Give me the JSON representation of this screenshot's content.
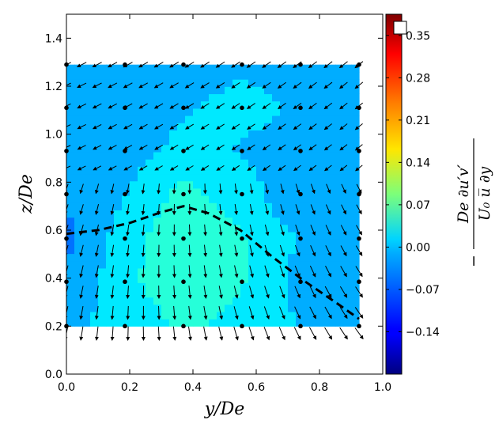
{
  "chart_data": {
    "type": "contour",
    "xlabel": "y/De",
    "ylabel": "z/De",
    "xlim": [
      0.0,
      1.0
    ],
    "ylim": [
      0.0,
      1.5
    ],
    "xticks": [
      "0.0",
      "0.2",
      "0.4",
      "0.6",
      "0.8",
      "1.0"
    ],
    "yticks": [
      "0.0",
      "0.2",
      "0.4",
      "0.6",
      "0.8",
      "1.0",
      "1.2",
      "1.4"
    ],
    "colorbar": {
      "label_lines": [
        "De ∂u′v′",
        "U₀ u̅  ∂y"
      ],
      "label_sign": "−",
      "range": [
        -0.21,
        0.385
      ],
      "ticks": [
        "−0.14",
        "−0.07",
        "0.00",
        "0.07",
        "0.14",
        "0.21",
        "0.28",
        "0.35"
      ],
      "colormap": "jet"
    },
    "field": {
      "y": [
        0.0,
        0.185,
        0.37,
        0.555,
        0.74,
        0.925
      ],
      "z": [
        0.2,
        0.385,
        0.565,
        0.75,
        0.93,
        1.11,
        1.29
      ],
      "values": [
        [
          -0.03,
          0.0,
          0.02,
          0.01,
          -0.02,
          -0.03
        ],
        [
          -0.05,
          0.01,
          0.04,
          0.02,
          -0.03,
          -0.04
        ],
        [
          -0.06,
          0.0,
          0.05,
          0.02,
          -0.02,
          -0.04
        ],
        [
          -0.05,
          -0.02,
          0.03,
          0.0,
          -0.05,
          -0.05
        ],
        [
          -0.04,
          -0.03,
          -0.01,
          -0.02,
          -0.03,
          -0.03
        ],
        [
          -0.03,
          -0.03,
          -0.02,
          -0.01,
          -0.02,
          -0.03
        ],
        [
          -0.03,
          -0.03,
          -0.03,
          -0.02,
          -0.03,
          -0.03
        ]
      ]
    },
    "measurement_points": {
      "y": [
        0.0,
        0.185,
        0.37,
        0.555,
        0.74,
        0.925
      ],
      "z": [
        0.2,
        0.385,
        0.565,
        0.75,
        0.93,
        1.11,
        1.29
      ]
    },
    "vector_field": {
      "y_range": [
        0.0,
        0.925
      ],
      "z_range": [
        0.17,
        1.29
      ],
      "columns": 20,
      "rows": 14
    },
    "dashed_line": {
      "y": [
        0.0,
        0.1,
        0.2,
        0.3,
        0.37,
        0.45,
        0.55,
        0.65,
        0.75,
        0.85,
        0.925
      ],
      "z": [
        0.585,
        0.6,
        0.63,
        0.675,
        0.7,
        0.67,
        0.6,
        0.49,
        0.39,
        0.3,
        0.23
      ]
    }
  }
}
